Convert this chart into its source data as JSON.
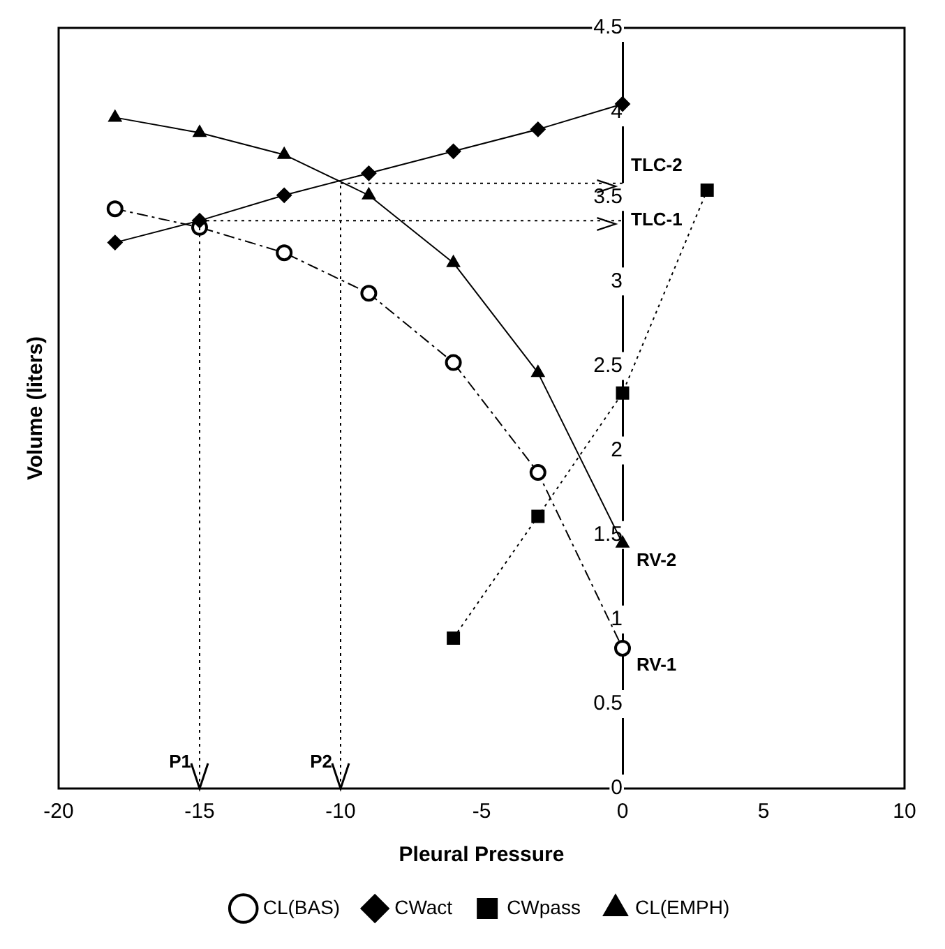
{
  "chart_data": {
    "type": "line",
    "xlabel": "Pleural Pressure",
    "ylabel": "Volume (liters)",
    "xlim": [
      -20,
      10
    ],
    "xticks": [
      -20,
      -15,
      -10,
      -5,
      0,
      5,
      10
    ],
    "ylim": [
      0,
      4.5
    ],
    "yticks": [
      0,
      0.5,
      1,
      1.5,
      2,
      2.5,
      3,
      3.5,
      4,
      4.5
    ],
    "grid": false,
    "legend": "bottom",
    "series": [
      {
        "name": "CL(BAS)",
        "color": "#000000",
        "marker": "circle",
        "line_style": "dashed",
        "x": [
          -18,
          -15,
          -12,
          -9,
          -6,
          -3,
          0
        ],
        "values": [
          3.43,
          3.32,
          3.17,
          2.93,
          2.52,
          1.87,
          0.83
        ]
      },
      {
        "name": "CWact",
        "color": "#000000",
        "marker": "diamond",
        "line_style": "solid",
        "x": [
          -18,
          -15,
          -12,
          -9,
          -6,
          -3,
          0
        ],
        "values": [
          3.23,
          3.36,
          3.51,
          3.64,
          3.77,
          3.9,
          4.05
        ]
      },
      {
        "name": "CWpass",
        "color": "#000000",
        "marker": "square",
        "line_style": "dotted",
        "x": [
          -6,
          -3,
          0,
          3
        ],
        "values": [
          0.89,
          1.61,
          2.34,
          3.54
        ]
      },
      {
        "name": "CL(EMPH)",
        "color": "#000000",
        "marker": "triangle",
        "line_style": "solid",
        "x": [
          -18,
          -15,
          -12,
          -9,
          -6,
          -3,
          0
        ],
        "values": [
          3.97,
          3.88,
          3.75,
          3.51,
          3.11,
          2.46,
          1.45
        ]
      }
    ],
    "ref_lines": [
      {
        "axis": "x",
        "value": -15,
        "label": "P1",
        "line_style": "dotted"
      },
      {
        "axis": "x",
        "value": -10,
        "label": "P2",
        "line_style": "dotted"
      },
      {
        "axis": "y",
        "value": 3.36,
        "label": "TLC-1",
        "line_style": "dotted"
      },
      {
        "axis": "y",
        "value": 3.58,
        "label": "TLC-2",
        "line_style": "dotted"
      }
    ],
    "annotations": [
      {
        "text": "RV-2",
        "x": 0,
        "y": 1.45
      },
      {
        "text": "RV-1",
        "x": 0,
        "y": 0.83
      }
    ]
  }
}
